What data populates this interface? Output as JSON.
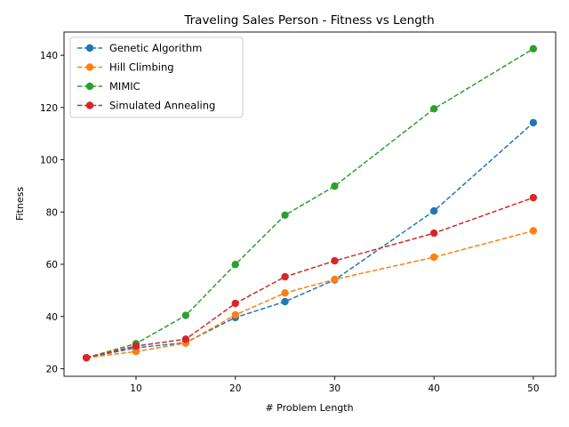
{
  "chart_data": {
    "type": "line",
    "title": "Traveling Sales Person - Fitness vs Length",
    "xlabel": "# Problem Length",
    "ylabel": "Fitness",
    "x": [
      5,
      10,
      15,
      20,
      25,
      30,
      40,
      50
    ],
    "xlim": [
      2.75,
      52.25
    ],
    "ylim": [
      17.1,
      148.9
    ],
    "xticks": [
      10,
      20,
      30,
      40,
      50
    ],
    "yticks": [
      20,
      40,
      60,
      80,
      100,
      120,
      140
    ],
    "legend_position": "top-left",
    "series": [
      {
        "name": "Genetic Algorithm",
        "color": "#1f77b4",
        "values": [
          24.2,
          28.0,
          30.0,
          39.6,
          45.7,
          54.0,
          80.4,
          114.2
        ]
      },
      {
        "name": "Hill Climbing",
        "color": "#ff7f0e",
        "values": [
          24.2,
          26.6,
          29.8,
          40.6,
          49.0,
          54.2,
          62.7,
          72.8
        ]
      },
      {
        "name": "MIMIC",
        "color": "#2ca02c",
        "values": [
          24.2,
          29.6,
          40.4,
          59.9,
          78.8,
          89.9,
          119.5,
          142.5
        ]
      },
      {
        "name": "Simulated Annealing",
        "color": "#d62728",
        "values": [
          24.2,
          28.7,
          31.3,
          45.0,
          55.2,
          61.3,
          71.9,
          85.5
        ]
      }
    ]
  }
}
